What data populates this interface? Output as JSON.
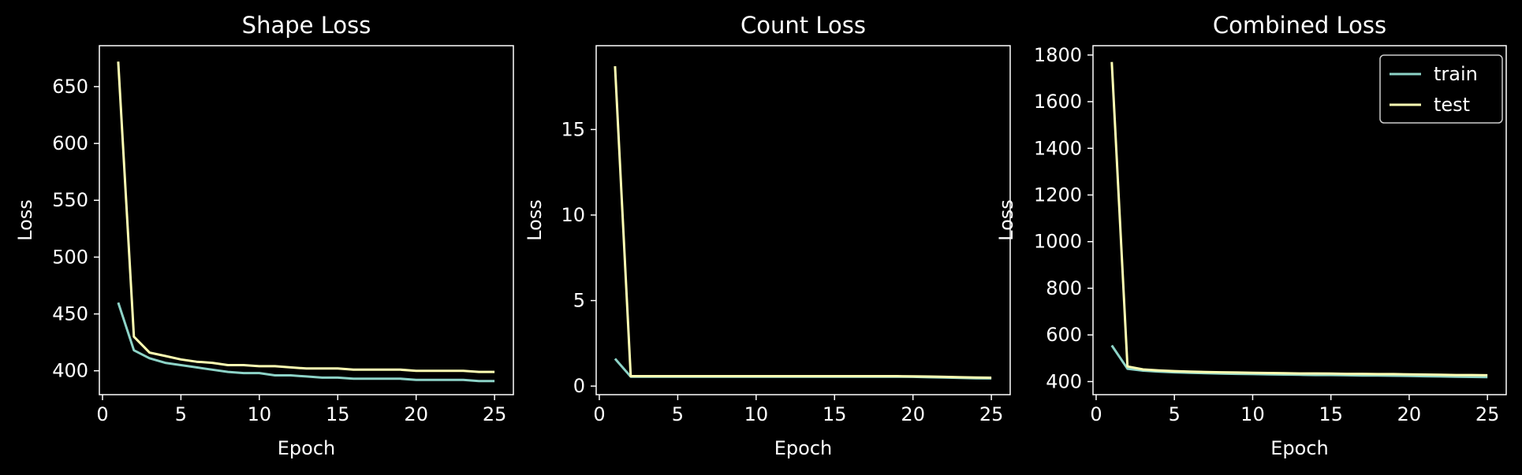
{
  "chart_data": [
    {
      "type": "line",
      "title": "Shape Loss",
      "xlabel": "Epoch",
      "ylabel": "Loss",
      "xlim": [
        -0.2,
        26.2
      ],
      "ylim": [
        379,
        686
      ],
      "xticks": [
        0,
        5,
        10,
        15,
        20,
        25
      ],
      "yticks": [
        400,
        450,
        500,
        550,
        600,
        650
      ],
      "legend": false,
      "grid": false,
      "x": [
        1,
        2,
        3,
        4,
        5,
        6,
        7,
        8,
        9,
        10,
        11,
        12,
        13,
        14,
        15,
        16,
        17,
        18,
        19,
        20,
        21,
        22,
        23,
        24,
        25
      ],
      "series": [
        {
          "name": "train",
          "color": "#8dd3c7",
          "values": [
            460,
            418,
            411,
            407,
            405,
            403,
            401,
            399,
            398,
            398,
            396,
            396,
            395,
            394,
            394,
            393,
            393,
            393,
            393,
            392,
            392,
            392,
            392,
            391,
            391
          ]
        },
        {
          "name": "test",
          "color": "#feffb3",
          "values": [
            672,
            430,
            416,
            413,
            410,
            408,
            407,
            405,
            405,
            404,
            404,
            403,
            402,
            402,
            402,
            401,
            401,
            401,
            401,
            400,
            400,
            400,
            400,
            399,
            399
          ]
        }
      ]
    },
    {
      "type": "line",
      "title": "Count Loss",
      "xlabel": "Epoch",
      "ylabel": "Loss",
      "xlim": [
        -0.2,
        26.2
      ],
      "ylim": [
        -0.5,
        19.9
      ],
      "xticks": [
        0,
        5,
        10,
        15,
        20,
        25
      ],
      "yticks": [
        0,
        5,
        10,
        15
      ],
      "legend": false,
      "grid": false,
      "x": [
        1,
        2,
        3,
        4,
        5,
        6,
        7,
        8,
        9,
        10,
        11,
        12,
        13,
        14,
        15,
        16,
        17,
        18,
        19,
        20,
        21,
        22,
        23,
        24,
        25
      ],
      "series": [
        {
          "name": "train",
          "color": "#8dd3c7",
          "values": [
            1.6,
            0.55,
            0.55,
            0.55,
            0.55,
            0.55,
            0.55,
            0.55,
            0.55,
            0.55,
            0.55,
            0.55,
            0.55,
            0.55,
            0.55,
            0.55,
            0.55,
            0.55,
            0.55,
            0.54,
            0.52,
            0.5,
            0.48,
            0.46,
            0.45
          ]
        },
        {
          "name": "test",
          "color": "#feffb3",
          "values": [
            18.7,
            0.58,
            0.58,
            0.58,
            0.58,
            0.58,
            0.58,
            0.58,
            0.58,
            0.58,
            0.58,
            0.58,
            0.58,
            0.58,
            0.58,
            0.58,
            0.58,
            0.58,
            0.58,
            0.57,
            0.56,
            0.54,
            0.52,
            0.5,
            0.49
          ]
        }
      ]
    },
    {
      "type": "line",
      "title": "Combined Loss",
      "xlabel": "Epoch",
      "ylabel": "Loss",
      "xlim": [
        -0.2,
        26.2
      ],
      "ylim": [
        344,
        1840
      ],
      "xticks": [
        0,
        5,
        10,
        15,
        20,
        25
      ],
      "yticks": [
        400,
        600,
        800,
        1000,
        1200,
        1400,
        1600,
        1800
      ],
      "legend": true,
      "legend_position": "upper right",
      "grid": false,
      "x": [
        1,
        2,
        3,
        4,
        5,
        6,
        7,
        8,
        9,
        10,
        11,
        12,
        13,
        14,
        15,
        16,
        17,
        18,
        19,
        20,
        21,
        22,
        23,
        24,
        25
      ],
      "series": [
        {
          "name": "train",
          "color": "#8dd3c7",
          "values": [
            555,
            455,
            447,
            443,
            440,
            438,
            436,
            434,
            433,
            432,
            431,
            430,
            429,
            428,
            428,
            427,
            426,
            426,
            425,
            424,
            423,
            422,
            421,
            420,
            419
          ]
        },
        {
          "name": "test",
          "color": "#feffb3",
          "values": [
            1770,
            465,
            452,
            448,
            445,
            443,
            441,
            440,
            439,
            438,
            437,
            436,
            435,
            435,
            434,
            433,
            433,
            432,
            432,
            431,
            430,
            429,
            428,
            428,
            427
          ]
        }
      ]
    }
  ]
}
